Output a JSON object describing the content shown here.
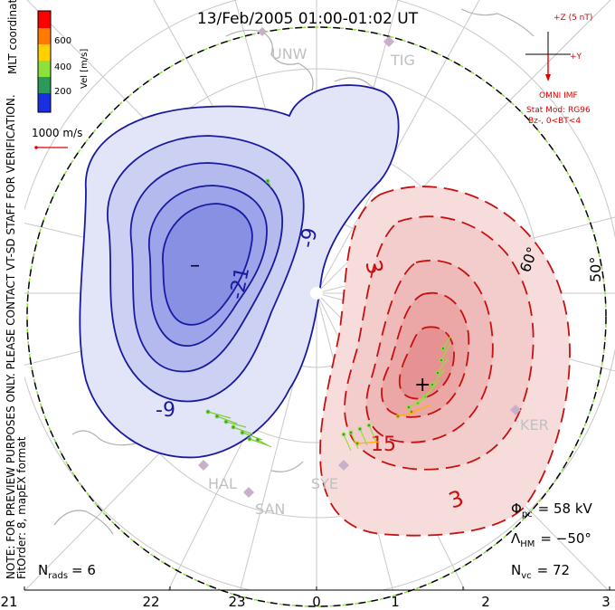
{
  "title": "13/Feb/2005 01:00-01:02 UT",
  "colorbar": {
    "label": "Vel [m/s]",
    "ticks": [
      "600",
      "400",
      "200"
    ],
    "colors": [
      "#ff0000",
      "#ff7a00",
      "#ffd000",
      "#8ee03a",
      "#2c9a5a",
      "#1a2fe0"
    ]
  },
  "coords_label": "MLT coordinates",
  "scale": {
    "label": "1000 m/s",
    "color": "#e00000"
  },
  "side_note": "NOTE: FOR PREVIEW PURPOSES ONLY. PLEASE CONTACT VT-SD STAFF FOR VERIFICATION.",
  "fit_note": "FitOrder: 8, mapEX format",
  "imf": {
    "z_label": "+Z (5 nT)",
    "y_label": "+Y",
    "source": "OMNI IMF",
    "model": "Stat Mod: RG96",
    "condition": "Bz-, 0<BT<4"
  },
  "stations": [
    "UNW",
    "TIG",
    "KER",
    "HAL",
    "SAN",
    "SYE"
  ],
  "contours": {
    "negative": {
      "label_a": "-9",
      "label_b": "-21",
      "label_c": "-9",
      "center": "–",
      "color": "#1a1aa0"
    },
    "positive": {
      "label_a": "3",
      "label_b": "15",
      "label_c": "3",
      "center": "+",
      "color": "#c81010"
    }
  },
  "lat_labels": [
    "50°",
    "60°"
  ],
  "mlt_ticks": [
    "21",
    "22",
    "23",
    "0",
    "1",
    "2",
    "3"
  ],
  "stats": {
    "nrads_label": "N",
    "nrads_sub": "rads",
    "nrads_value": "= 6",
    "phi_label": "Φ",
    "phi_sub": "pc",
    "phi_value": "= 58 kV",
    "lambda_label": "Λ",
    "lambda_sub": "HM",
    "lambda_value": "= −50°",
    "nvc_label": "N",
    "nvc_sub": "vc",
    "nvc_value": "= 72"
  }
}
